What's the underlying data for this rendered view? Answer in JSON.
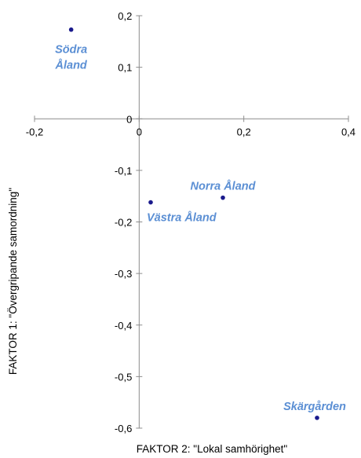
{
  "chart_data": {
    "type": "scatter",
    "title": "",
    "xlabel": "FAKTOR 2: \"Lokal samhörighet\"",
    "ylabel": "FAKTOR 1: \"Övergripande samordning\"",
    "xlim": [
      -0.2,
      0.4
    ],
    "ylim": [
      -0.6,
      0.2
    ],
    "x_ticks": [
      -0.2,
      0,
      0.2,
      0.4
    ],
    "x_tick_labels": [
      "-0,2",
      "0",
      "0,2",
      "0,4"
    ],
    "y_ticks": [
      0.2,
      0.1,
      0,
      -0.1,
      -0.2,
      -0.3,
      -0.4,
      -0.5,
      -0.6
    ],
    "y_tick_labels": [
      "0,2",
      "0,1",
      "0",
      "-0,1",
      "-0,2",
      "-0,3",
      "-0,4",
      "-0,5",
      "-0,6"
    ],
    "grid": false,
    "legend": "none",
    "point_color": "#1a1a8c",
    "label_color": "#5b8fd4",
    "points": [
      {
        "label": "Södra Åland",
        "label_lines": [
          "Södra",
          "Åland"
        ],
        "x": -0.13,
        "y": 0.173
      },
      {
        "label": "Norra Åland",
        "label_lines": [
          "Norra Åland"
        ],
        "x": 0.16,
        "y": -0.153
      },
      {
        "label": "Västra Åland",
        "label_lines": [
          "Västra Åland"
        ],
        "x": 0.022,
        "y": -0.162
      },
      {
        "label": "Skärgården",
        "label_lines": [
          "Skärgården"
        ],
        "x": 0.34,
        "y": -0.58
      }
    ]
  }
}
